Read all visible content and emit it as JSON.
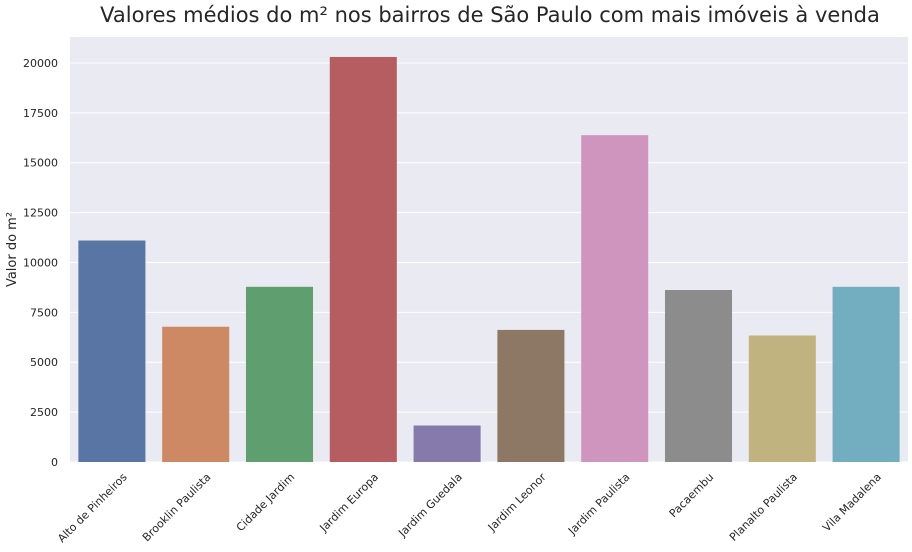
{
  "chart_data": {
    "type": "bar",
    "title": "Valores médios do m² nos bairros de São Paulo com mais imóveis à venda",
    "xlabel": "",
    "ylabel": "Valor do m²",
    "ylim": [
      0,
      21300
    ],
    "yticks": [
      0,
      2500,
      5000,
      7500,
      10000,
      12500,
      15000,
      17500,
      20000
    ],
    "ytick_labels": [
      "0",
      "2500",
      "5000",
      "7500",
      "10000",
      "12500",
      "15000",
      "17500",
      "20000"
    ],
    "grid": true,
    "categories": [
      "Alto de Pinheiros",
      "Brooklin Paulista",
      "Cidade Jardim",
      "Jardim Europa",
      "Jardim Guedala",
      "Jardim Leonor",
      "Jardim Paulista",
      "Pacaembu",
      "Planalto Paulista",
      "Vila Madalena"
    ],
    "values": [
      11100,
      6780,
      8780,
      20300,
      1830,
      6620,
      16380,
      8620,
      6340,
      8780
    ],
    "colors": [
      "#5875a4",
      "#cc8963",
      "#5f9e6e",
      "#b55d60",
      "#857aab",
      "#8d7866",
      "#d095bf",
      "#8c8c8c",
      "#c1b37f",
      "#72aec0"
    ],
    "background": "#eaeaf2"
  }
}
